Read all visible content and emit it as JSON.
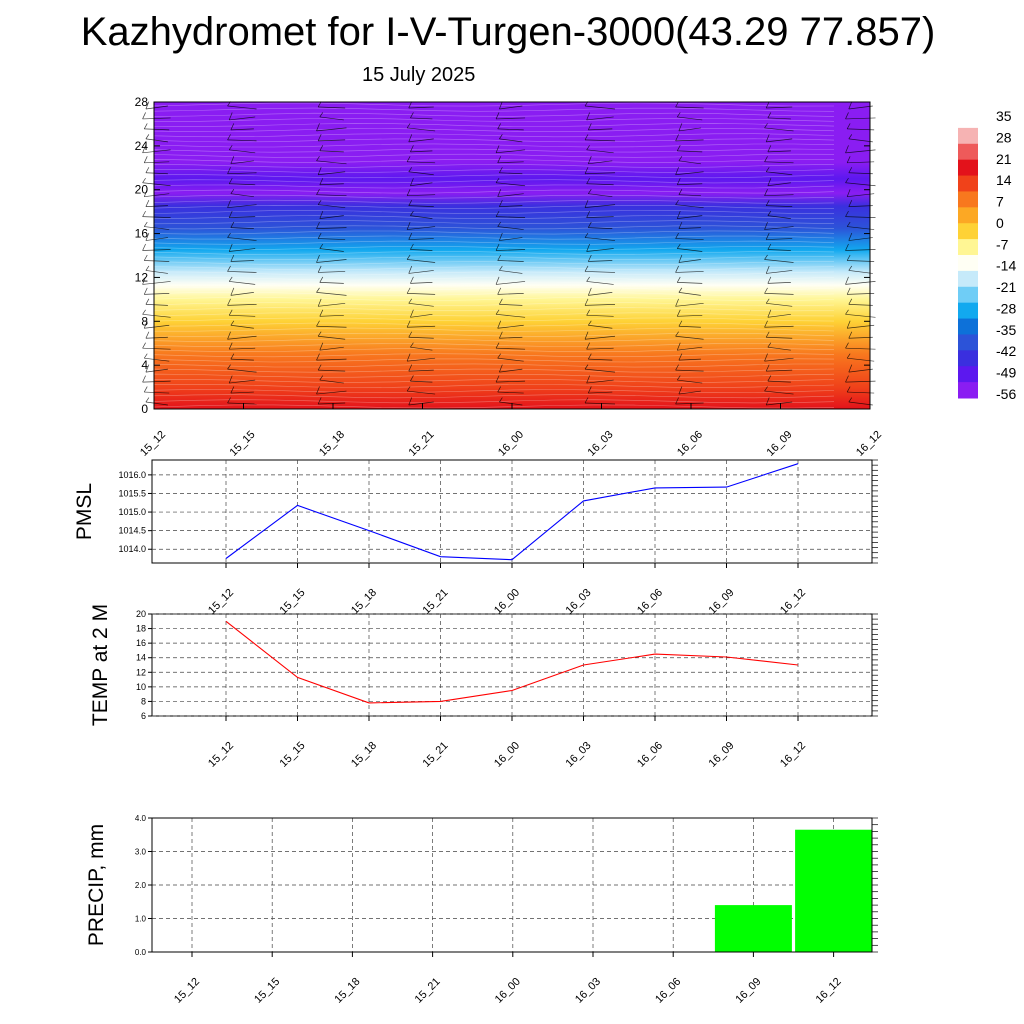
{
  "title": "Kazhydromet for I-V-Turgen-3000(43.29 77.857)",
  "subtitle": "15 July 2025",
  "chart_data": [
    {
      "type": "heatmap",
      "name": "cross-section",
      "x_ticks": [
        "15_12",
        "15_15",
        "15_18",
        "15_21",
        "16_00",
        "16_03",
        "16_06",
        "16_09",
        "16_12"
      ],
      "y_ticks": [
        "0",
        "4",
        "8",
        "12",
        "16",
        "20",
        "24",
        "28"
      ],
      "ylim": [
        0,
        28
      ],
      "colorbar": {
        "labels": [
          "35",
          "28",
          "21",
          "14",
          "7",
          "0",
          "-7",
          "-14",
          "-21",
          "-28",
          "-35",
          "-42",
          "-49",
          "-56"
        ],
        "colors": [
          "#ffffff",
          "#f6b3b3",
          "#ee5a5a",
          "#e3121b",
          "#f0421a",
          "#f8781e",
          "#fca824",
          "#fed236",
          "#fff694",
          "#fffff4",
          "#c6eafa",
          "#6fcdf6",
          "#12a9ef",
          "#0d71d9",
          "#2c53d8",
          "#3a2fdf",
          "#5c18ef",
          "#8a1df2"
        ]
      },
      "temperature_profile": [
        {
          "level": 0,
          "value": 18
        },
        {
          "level": 2,
          "value": 14
        },
        {
          "level": 5,
          "value": 7
        },
        {
          "level": 8,
          "value": 0
        },
        {
          "level": 10,
          "value": -6
        },
        {
          "level": 11.3,
          "value": -12
        },
        {
          "level": 12.5,
          "value": -21
        },
        {
          "level": 14.5,
          "value": -30
        },
        {
          "level": 16.5,
          "value": -38
        },
        {
          "level": 18.5,
          "value": -46
        },
        {
          "level": 19.7,
          "value": -55
        },
        {
          "level": 21,
          "value": -50
        },
        {
          "level": 22.5,
          "value": -55
        },
        {
          "level": 28,
          "value": -56
        }
      ]
    },
    {
      "type": "line",
      "name": "pmsl",
      "ylabel": "PMSL",
      "x": [
        "15_12",
        "15_15",
        "15_18",
        "15_21",
        "16_00",
        "16_03",
        "16_06",
        "16_09",
        "16_12"
      ],
      "y_ticks": [
        "1014.0",
        "1014.5",
        "1015.0",
        "1015.5",
        "1016.0"
      ],
      "ylim": [
        1013.63,
        1016.4
      ],
      "values": [
        1013.75,
        1015.18,
        1014.5,
        1013.8,
        1013.72,
        1015.3,
        1015.65,
        1015.67,
        1016.3
      ],
      "color": "#0000ff"
    },
    {
      "type": "line",
      "name": "temp",
      "ylabel": "TEMP at 2 M",
      "x": [
        "15_12",
        "15_15",
        "15_18",
        "15_21",
        "16_00",
        "16_03",
        "16_06",
        "16_09",
        "16_12"
      ],
      "y_ticks": [
        "6",
        "8",
        "10",
        "12",
        "14",
        "16",
        "18",
        "20"
      ],
      "ylim": [
        6,
        20
      ],
      "values": [
        19.0,
        11.3,
        7.8,
        8.0,
        9.5,
        13.0,
        14.5,
        14.1,
        13.0
      ],
      "color": "#ff0000"
    },
    {
      "type": "bar",
      "name": "precip",
      "ylabel": "PRECIP, mm",
      "categories": [
        "15_12",
        "15_15",
        "15_18",
        "15_21",
        "16_00",
        "16_03",
        "16_06",
        "16_09",
        "16_12"
      ],
      "y_ticks": [
        "0.0",
        "1.0",
        "2.0",
        "3.0",
        "4.0"
      ],
      "ylim": [
        0,
        4
      ],
      "values": [
        0,
        0,
        0,
        0,
        0,
        0,
        0,
        1.4,
        3.65
      ],
      "color": "#00ff00"
    }
  ]
}
